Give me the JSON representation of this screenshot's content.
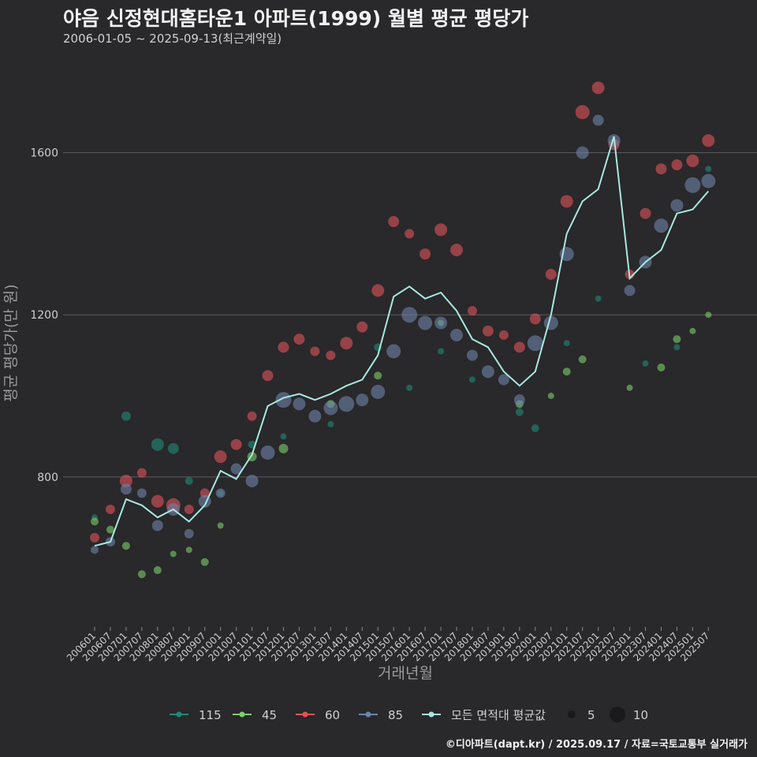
{
  "header": {
    "title": "야음 신정현대홈타운1 아파트(1999) 월별 평균 평당가",
    "subtitle": "2006-01-05 ~ 2025-09-13(최근계약일)"
  },
  "footer": {
    "credit": "©디아파트(dapt.kr) / 2025.09.17 / 자료=국토교통부 실거래가"
  },
  "chart_data": {
    "type": "scatter",
    "xlabel": "거래년월",
    "ylabel": "평균 평당가(만 원)",
    "ylim": [
      430,
      1860
    ],
    "yticks": [
      800,
      1200,
      1600
    ],
    "grid": true,
    "legend_position": "bottom",
    "xticks": [
      "200601",
      "200607",
      "200701",
      "200707",
      "200801",
      "200807",
      "200901",
      "200907",
      "201001",
      "201007",
      "201101",
      "201107",
      "201201",
      "201207",
      "201301",
      "201307",
      "201401",
      "201407",
      "201501",
      "201507",
      "201601",
      "201607",
      "201701",
      "201707",
      "201801",
      "201807",
      "201901",
      "201907",
      "202001",
      "202007",
      "202101",
      "202107",
      "202201",
      "202207",
      "202301",
      "202307",
      "202401",
      "202407",
      "202501",
      "202507"
    ],
    "line": {
      "name": "모든 면적대 평균값",
      "color": "#a8e8e0",
      "points": [
        [
          "200601",
          630
        ],
        [
          "200607",
          640
        ],
        [
          "200701",
          745
        ],
        [
          "200707",
          730
        ],
        [
          "200801",
          700
        ],
        [
          "200807",
          720
        ],
        [
          "200901",
          690
        ],
        [
          "200907",
          730
        ],
        [
          "201001",
          815
        ],
        [
          "201007",
          795
        ],
        [
          "201101",
          855
        ],
        [
          "201107",
          975
        ],
        [
          "201201",
          995
        ],
        [
          "201207",
          1005
        ],
        [
          "201301",
          990
        ],
        [
          "201307",
          1005
        ],
        [
          "201401",
          1025
        ],
        [
          "201407",
          1040
        ],
        [
          "201501",
          1100
        ],
        [
          "201507",
          1245
        ],
        [
          "201601",
          1270
        ],
        [
          "201607",
          1240
        ],
        [
          "201701",
          1255
        ],
        [
          "201707",
          1210
        ],
        [
          "201801",
          1140
        ],
        [
          "201807",
          1120
        ],
        [
          "201901",
          1060
        ],
        [
          "201907",
          1025
        ],
        [
          "202001",
          1060
        ],
        [
          "202007",
          1200
        ],
        [
          "202101",
          1400
        ],
        [
          "202107",
          1480
        ],
        [
          "202201",
          1510
        ],
        [
          "202207",
          1640
        ],
        [
          "202301",
          1290
        ],
        [
          "202307",
          1330
        ],
        [
          "202401",
          1360
        ],
        [
          "202407",
          1450
        ],
        [
          "202501",
          1460
        ],
        [
          "202507",
          1505
        ]
      ]
    },
    "series": [
      {
        "name": "115",
        "color": "#1f8a78",
        "points": [
          [
            "200601",
            700,
            4
          ],
          [
            "200701",
            950,
            6
          ],
          [
            "200801",
            880,
            8
          ],
          [
            "200807",
            870,
            7
          ],
          [
            "200901",
            790,
            5
          ],
          [
            "201001",
            760,
            4
          ],
          [
            "201101",
            880,
            5
          ],
          [
            "201201",
            900,
            4
          ],
          [
            "201307",
            930,
            4
          ],
          [
            "201501",
            1120,
            5
          ],
          [
            "201601",
            1020,
            4
          ],
          [
            "201701",
            1110,
            4
          ],
          [
            "201801",
            1040,
            4
          ],
          [
            "201907",
            960,
            5
          ],
          [
            "202001",
            920,
            5
          ],
          [
            "202101",
            1130,
            4
          ],
          [
            "202201",
            1240,
            4
          ],
          [
            "202307",
            1080,
            4
          ],
          [
            "202407",
            1120,
            4
          ],
          [
            "202507",
            1560,
            4
          ]
        ]
      },
      {
        "name": "45",
        "color": "#7ccf6c",
        "points": [
          [
            "200601",
            690,
            5
          ],
          [
            "200607",
            670,
            5
          ],
          [
            "200701",
            630,
            5
          ],
          [
            "200707",
            560,
            5
          ],
          [
            "200801",
            570,
            5
          ],
          [
            "200807",
            610,
            4
          ],
          [
            "200901",
            620,
            4
          ],
          [
            "200907",
            590,
            5
          ],
          [
            "201001",
            680,
            4
          ],
          [
            "201101",
            850,
            6
          ],
          [
            "201201",
            870,
            6
          ],
          [
            "201307",
            980,
            5
          ],
          [
            "201501",
            1050,
            5
          ],
          [
            "201701",
            1180,
            4
          ],
          [
            "201907",
            980,
            5
          ],
          [
            "202007",
            1000,
            4
          ],
          [
            "202101",
            1060,
            5
          ],
          [
            "202107",
            1090,
            5
          ],
          [
            "202301",
            1020,
            4
          ],
          [
            "202401",
            1070,
            5
          ],
          [
            "202407",
            1140,
            5
          ],
          [
            "202501",
            1160,
            4
          ],
          [
            "202507",
            1200,
            4
          ]
        ]
      },
      {
        "name": "60",
        "color": "#e0545c",
        "points": [
          [
            "200601",
            650,
            6
          ],
          [
            "200607",
            720,
            6
          ],
          [
            "200701",
            790,
            8
          ],
          [
            "200707",
            810,
            6
          ],
          [
            "200801",
            740,
            8
          ],
          [
            "200807",
            730,
            9
          ],
          [
            "200901",
            720,
            6
          ],
          [
            "200907",
            760,
            6
          ],
          [
            "201001",
            850,
            8
          ],
          [
            "201007",
            880,
            7
          ],
          [
            "201101",
            950,
            6
          ],
          [
            "201107",
            1050,
            7
          ],
          [
            "201201",
            1120,
            7
          ],
          [
            "201207",
            1140,
            7
          ],
          [
            "201301",
            1110,
            6
          ],
          [
            "201307",
            1100,
            6
          ],
          [
            "201401",
            1130,
            8
          ],
          [
            "201407",
            1170,
            7
          ],
          [
            "201501",
            1260,
            8
          ],
          [
            "201507",
            1430,
            7
          ],
          [
            "201601",
            1400,
            6
          ],
          [
            "201607",
            1350,
            7
          ],
          [
            "201701",
            1410,
            8
          ],
          [
            "201707",
            1360,
            8
          ],
          [
            "201801",
            1210,
            6
          ],
          [
            "201807",
            1160,
            7
          ],
          [
            "201901",
            1150,
            6
          ],
          [
            "201907",
            1120,
            7
          ],
          [
            "202001",
            1190,
            7
          ],
          [
            "202007",
            1300,
            7
          ],
          [
            "202101",
            1480,
            8
          ],
          [
            "202107",
            1700,
            9
          ],
          [
            "202201",
            1760,
            8
          ],
          [
            "202207",
            1620,
            7
          ],
          [
            "202301",
            1300,
            6
          ],
          [
            "202307",
            1450,
            7
          ],
          [
            "202401",
            1560,
            7
          ],
          [
            "202407",
            1570,
            7
          ],
          [
            "202501",
            1580,
            8
          ],
          [
            "202507",
            1630,
            8
          ]
        ]
      },
      {
        "name": "85",
        "color": "#6e84aa",
        "points": [
          [
            "200601",
            620,
            5
          ],
          [
            "200607",
            640,
            6
          ],
          [
            "200701",
            770,
            7
          ],
          [
            "200707",
            760,
            6
          ],
          [
            "200801",
            680,
            7
          ],
          [
            "200807",
            720,
            8
          ],
          [
            "200901",
            660,
            6
          ],
          [
            "200907",
            740,
            8
          ],
          [
            "201001",
            760,
            6
          ],
          [
            "201007",
            820,
            7
          ],
          [
            "201101",
            790,
            8
          ],
          [
            "201107",
            860,
            9
          ],
          [
            "201201",
            990,
            10
          ],
          [
            "201207",
            980,
            8
          ],
          [
            "201301",
            950,
            8
          ],
          [
            "201307",
            970,
            9
          ],
          [
            "201401",
            980,
            10
          ],
          [
            "201407",
            990,
            8
          ],
          [
            "201501",
            1010,
            9
          ],
          [
            "201507",
            1110,
            9
          ],
          [
            "201601",
            1200,
            10
          ],
          [
            "201607",
            1180,
            9
          ],
          [
            "201701",
            1180,
            8
          ],
          [
            "201707",
            1150,
            8
          ],
          [
            "201801",
            1100,
            7
          ],
          [
            "201807",
            1060,
            8
          ],
          [
            "201901",
            1040,
            7
          ],
          [
            "201907",
            990,
            7
          ],
          [
            "202001",
            1130,
            10
          ],
          [
            "202007",
            1180,
            9
          ],
          [
            "202101",
            1350,
            9
          ],
          [
            "202107",
            1600,
            8
          ],
          [
            "202201",
            1680,
            7
          ],
          [
            "202207",
            1630,
            8
          ],
          [
            "202301",
            1260,
            7
          ],
          [
            "202307",
            1330,
            8
          ],
          [
            "202401",
            1420,
            9
          ],
          [
            "202407",
            1470,
            8
          ],
          [
            "202501",
            1520,
            10
          ],
          [
            "202507",
            1530,
            9
          ]
        ]
      }
    ],
    "size_legend": [
      {
        "label": "5",
        "value": 5
      },
      {
        "label": "10",
        "value": 10
      }
    ]
  }
}
